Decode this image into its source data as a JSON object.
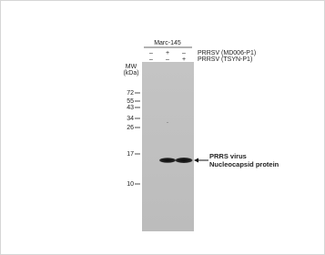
{
  "header": {
    "cell_line": "Marc-145"
  },
  "treatments": [
    {
      "signs": [
        "–",
        "+",
        "–"
      ],
      "name": "PRRSV (MD006-P1)"
    },
    {
      "signs": [
        "–",
        "–",
        "+"
      ],
      "name": "PRRSV (TSYN-P1)"
    }
  ],
  "mw_label": [
    "MW",
    "(kDa)"
  ],
  "markers": [
    "72",
    "55",
    "43",
    "34",
    "26",
    "17",
    "10"
  ],
  "annotation": [
    "PRRS virus",
    "Nucleocapsid protein"
  ]
}
